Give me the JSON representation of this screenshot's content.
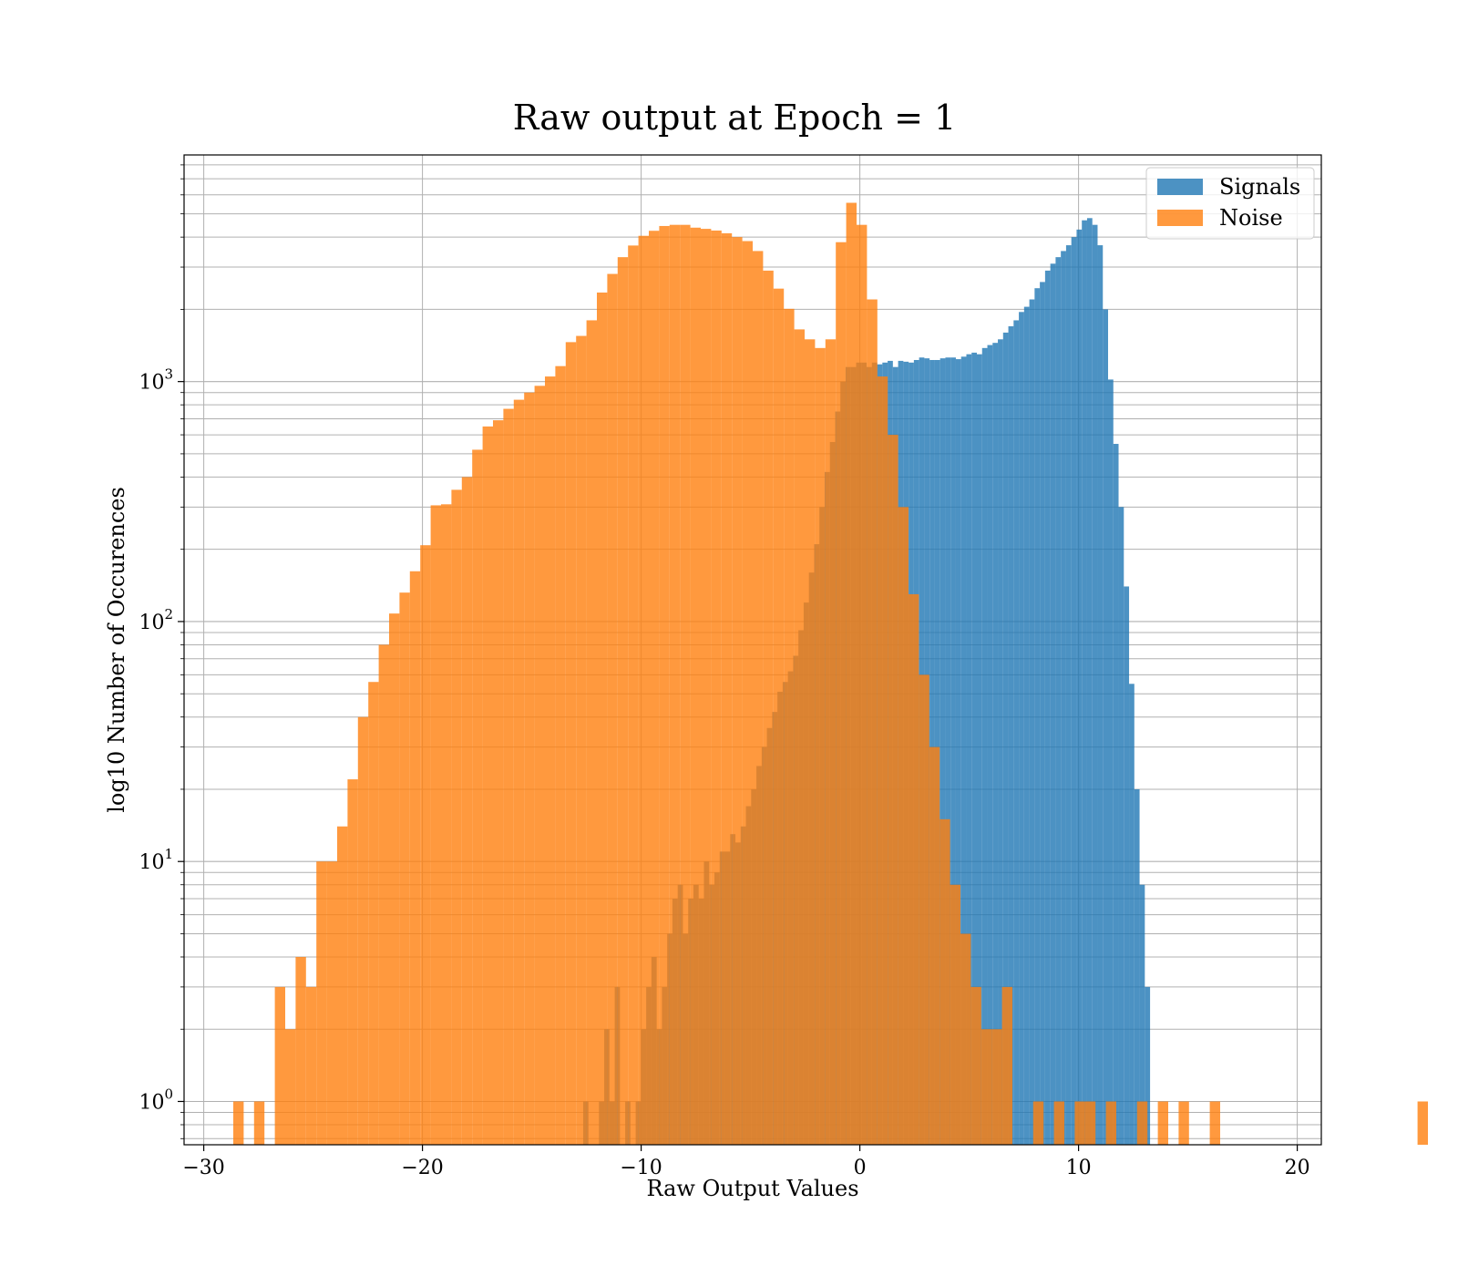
{
  "chart_data": {
    "type": "bar",
    "title": "Raw output at Epoch = 1",
    "xlabel": "Raw Output Values",
    "ylabel": "log10 Number of Occurences",
    "xlim": [
      -30.9,
      21.1
    ],
    "ylim": [
      0.66,
      8800
    ],
    "yscale": "log",
    "grid": true,
    "legend": "top-right",
    "x_ticks": [
      -30,
      -20,
      -10,
      0,
      10,
      20
    ],
    "x_tick_labels": [
      "−30",
      "−20",
      "−10",
      "0",
      "10",
      "20"
    ],
    "y_ticks": [
      1,
      10,
      100,
      1000
    ],
    "y_tick_labels": [
      {
        "base": "10",
        "exp": "0"
      },
      {
        "base": "10",
        "exp": "1"
      },
      {
        "base": "10",
        "exp": "2"
      },
      {
        "base": "10",
        "exp": "3"
      }
    ],
    "series": [
      {
        "name": "Signals",
        "color": "#1f77b4",
        "alpha": 0.8,
        "bin_start": -12.65,
        "bin_width": 0.24,
        "counts": [
          1,
          0,
          0,
          1,
          2,
          1,
          3,
          0,
          1,
          0,
          1,
          2,
          3,
          4,
          2,
          3,
          5,
          7,
          8,
          5,
          7,
          8,
          7,
          10,
          8,
          9,
          11,
          11,
          13,
          12,
          14,
          17,
          20,
          25,
          30,
          36,
          42,
          51,
          56,
          62,
          72,
          92,
          120,
          160,
          210,
          300,
          420,
          560,
          750,
          1000,
          1150,
          1150,
          1200,
          1200,
          1150,
          1200,
          1180,
          1200,
          1220,
          1150,
          1220,
          1210,
          1200,
          1230,
          1260,
          1250,
          1230,
          1230,
          1250,
          1260,
          1260,
          1240,
          1270,
          1300,
          1320,
          1300,
          1380,
          1420,
          1450,
          1500,
          1600,
          1700,
          1800,
          1950,
          2050,
          2200,
          2450,
          2600,
          2900,
          3100,
          3300,
          3500,
          3700,
          4000,
          4300,
          4700,
          4800,
          4500,
          3700,
          2000,
          1020,
          550,
          300,
          140,
          55,
          20,
          8,
          3
        ]
      },
      {
        "name": "Noise",
        "color": "#ff7f0e",
        "alpha": 0.8,
        "bin_start": -28.65,
        "bin_width": 0.475,
        "counts": [
          1,
          0,
          1,
          0,
          3,
          2,
          4,
          3,
          10,
          10,
          14,
          22,
          40,
          56,
          80,
          108,
          132,
          162,
          208,
          305,
          308,
          354,
          400,
          520,
          650,
          690,
          770,
          840,
          900,
          960,
          1050,
          1160,
          1460,
          1550,
          1800,
          2350,
          2810,
          3300,
          3690,
          4050,
          4250,
          4450,
          4500,
          4500,
          4380,
          4330,
          4260,
          4150,
          4000,
          3850,
          3500,
          2900,
          2440,
          2010,
          1650,
          1500,
          1380,
          1500,
          3810,
          5560,
          4500,
          2200,
          1050,
          600,
          300,
          130,
          60,
          30,
          15,
          8,
          5,
          3,
          2,
          2,
          3,
          0,
          0,
          1,
          0,
          1,
          0,
          1,
          1,
          0,
          1,
          0,
          0,
          1,
          0,
          1,
          0,
          1,
          0,
          0,
          1,
          0,
          0,
          0,
          0,
          0,
          0,
          0,
          0,
          0,
          0,
          0,
          0,
          0,
          0,
          0,
          0,
          0,
          0,
          0,
          1
        ]
      }
    ]
  }
}
